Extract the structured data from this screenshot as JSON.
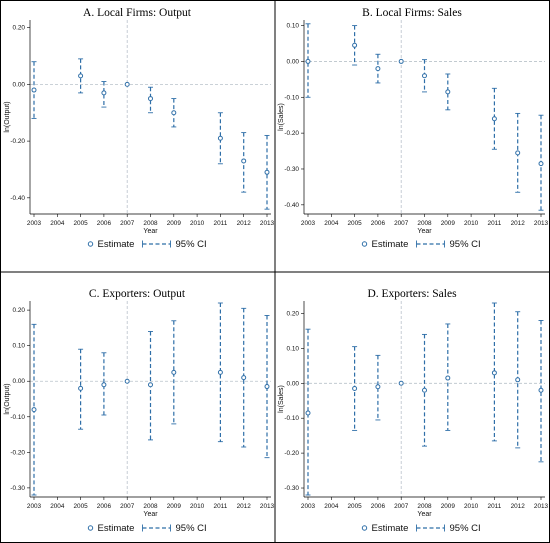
{
  "colors": {
    "ci": "#2f6fa8",
    "marker": "#2f6fa8",
    "reference": "#b9c2ca",
    "axis": "#000000",
    "background": "#ffffff"
  },
  "shared": {
    "years": [
      "2003",
      "2004",
      "2005",
      "2006",
      "2007",
      "2008",
      "2009",
      "2010",
      "2011",
      "2012",
      "2013"
    ],
    "xlabel": "Year",
    "legend": {
      "estimate": "Estimate",
      "ci": "95% CI"
    },
    "reference_year": "2007"
  },
  "chart_data": [
    {
      "type": "scatter",
      "title": "A. Local Firms: Output",
      "ylabel": "ln(Output)",
      "ylim": [
        -0.45,
        0.22
      ],
      "yticks": [
        0.2,
        0.0,
        -0.2,
        -0.4
      ],
      "ytick_labels": [
        "0.20",
        "0.00",
        "-0.20",
        "-0.40"
      ],
      "x": [
        "2003",
        "2005",
        "2006",
        "2007",
        "2008",
        "2009",
        "2011",
        "2012",
        "2013"
      ],
      "estimate": [
        -0.02,
        0.03,
        -0.03,
        0.0,
        -0.05,
        -0.1,
        -0.19,
        -0.27,
        -0.31
      ],
      "ci_low": [
        -0.12,
        -0.03,
        -0.08,
        0.0,
        -0.1,
        -0.15,
        -0.28,
        -0.38,
        -0.44
      ],
      "ci_high": [
        0.08,
        0.09,
        0.01,
        0.0,
        -0.01,
        -0.05,
        -0.1,
        -0.17,
        -0.18
      ]
    },
    {
      "type": "scatter",
      "title": "B. Local Firms: Sales",
      "ylabel": "ln(Sales)",
      "ylim": [
        -0.42,
        0.11
      ],
      "yticks": [
        0.1,
        0.0,
        -0.1,
        -0.2,
        -0.3,
        -0.4
      ],
      "ytick_labels": [
        "0.10",
        "0.00",
        "-0.10",
        "-0.20",
        "-0.30",
        "-0.40"
      ],
      "x": [
        "2003",
        "2005",
        "2006",
        "2007",
        "2008",
        "2009",
        "2011",
        "2012",
        "2013"
      ],
      "estimate": [
        0.0,
        0.045,
        -0.02,
        0.0,
        -0.04,
        -0.085,
        -0.16,
        -0.255,
        -0.285
      ],
      "ci_low": [
        -0.1,
        -0.01,
        -0.06,
        0.0,
        -0.085,
        -0.135,
        -0.245,
        -0.365,
        -0.415
      ],
      "ci_high": [
        0.105,
        0.1,
        0.02,
        0.0,
        0.005,
        -0.035,
        -0.075,
        -0.145,
        -0.15
      ]
    },
    {
      "type": "scatter",
      "title": "C. Exporters: Output",
      "ylabel": "ln(Output)",
      "ylim": [
        -0.32,
        0.22
      ],
      "yticks": [
        0.2,
        0.1,
        0.0,
        -0.1,
        -0.2,
        -0.3
      ],
      "ytick_labels": [
        "0.20",
        "0.10",
        "0.00",
        "-0.10",
        "-0.20",
        "-0.30"
      ],
      "x": [
        "2003",
        "2005",
        "2006",
        "2007",
        "2008",
        "2009",
        "2011",
        "2012",
        "2013"
      ],
      "estimate": [
        -0.08,
        -0.02,
        -0.01,
        0.0,
        -0.01,
        0.025,
        0.025,
        0.01,
        -0.015
      ],
      "ci_low": [
        -0.32,
        -0.135,
        -0.095,
        0.0,
        -0.165,
        -0.12,
        -0.17,
        -0.185,
        -0.215
      ],
      "ci_high": [
        0.16,
        0.09,
        0.08,
        0.0,
        0.14,
        0.17,
        0.22,
        0.205,
        0.185
      ]
    },
    {
      "type": "scatter",
      "title": "D. Exporters: Sales",
      "ylabel": "ln(Sales)",
      "ylim": [
        -0.32,
        0.23
      ],
      "yticks": [
        0.2,
        0.1,
        0.0,
        -0.1,
        -0.2,
        -0.3
      ],
      "ytick_labels": [
        "0.20",
        "0.10",
        "0.00",
        "-0.10",
        "-0.20",
        "-0.30"
      ],
      "x": [
        "2003",
        "2005",
        "2006",
        "2007",
        "2008",
        "2009",
        "2011",
        "2012",
        "2013"
      ],
      "estimate": [
        -0.085,
        -0.015,
        -0.01,
        0.0,
        -0.02,
        0.015,
        0.03,
        0.01,
        -0.02
      ],
      "ci_low": [
        -0.32,
        -0.135,
        -0.105,
        0.0,
        -0.18,
        -0.135,
        -0.165,
        -0.185,
        -0.225
      ],
      "ci_high": [
        0.155,
        0.105,
        0.08,
        0.0,
        0.14,
        0.17,
        0.23,
        0.205,
        0.18
      ]
    }
  ]
}
